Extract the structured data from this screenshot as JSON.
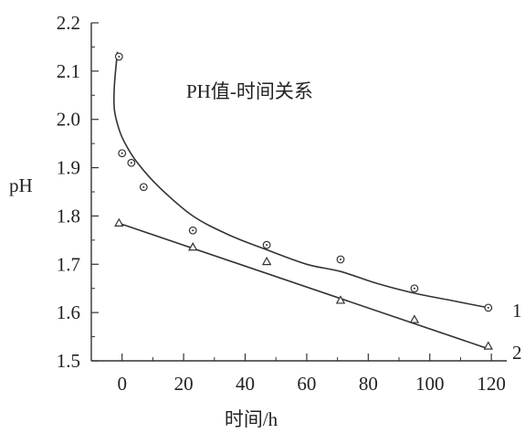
{
  "chart_data": {
    "type": "scatter",
    "title": "",
    "annotation": "PH值-时间关系",
    "xlabel": "时间/h",
    "ylabel": "pH",
    "xlim": [
      -10,
      125
    ],
    "ylim": [
      1.5,
      2.2
    ],
    "x_ticks": [
      "0",
      "20",
      "40",
      "60",
      "80",
      "100",
      "120"
    ],
    "y_ticks": [
      "1.5",
      "1.6",
      "1.7",
      "1.8",
      "1.9",
      "2.0",
      "2.1",
      "2.2"
    ],
    "grid": false,
    "legend": "none",
    "series": [
      {
        "name": "1",
        "marker": "circle-dot",
        "color": "#333333",
        "points": [
          {
            "x": -1,
            "y": 2.13
          },
          {
            "x": 0,
            "y": 1.93
          },
          {
            "x": 3,
            "y": 1.91
          },
          {
            "x": 7,
            "y": 1.86
          },
          {
            "x": 23,
            "y": 1.77
          },
          {
            "x": 47,
            "y": 1.74
          },
          {
            "x": 71,
            "y": 1.71
          },
          {
            "x": 95,
            "y": 1.65
          },
          {
            "x": 119,
            "y": 1.61
          }
        ],
        "fit_curve": [
          {
            "x": -1.5,
            "y": 2.14
          },
          {
            "x": -2.5,
            "y": 2.07
          },
          {
            "x": -2.5,
            "y": 2.02
          },
          {
            "x": -1,
            "y": 1.98
          },
          {
            "x": 1,
            "y": 1.95
          },
          {
            "x": 5,
            "y": 1.91
          },
          {
            "x": 12,
            "y": 1.86
          },
          {
            "x": 23,
            "y": 1.8
          },
          {
            "x": 35,
            "y": 1.76
          },
          {
            "x": 47,
            "y": 1.73
          },
          {
            "x": 60,
            "y": 1.7
          },
          {
            "x": 71,
            "y": 1.685
          },
          {
            "x": 83,
            "y": 1.66
          },
          {
            "x": 95,
            "y": 1.64
          },
          {
            "x": 107,
            "y": 1.625
          },
          {
            "x": 119,
            "y": 1.61
          }
        ]
      },
      {
        "name": "2",
        "marker": "triangle",
        "color": "#333333",
        "points": [
          {
            "x": -1,
            "y": 1.785
          },
          {
            "x": 23,
            "y": 1.735
          },
          {
            "x": 47,
            "y": 1.705
          },
          {
            "x": 71,
            "y": 1.625
          },
          {
            "x": 95,
            "y": 1.585
          },
          {
            "x": 119,
            "y": 1.53
          }
        ],
        "fit_line": [
          {
            "x": -1,
            "y": 1.785
          },
          {
            "x": 119,
            "y": 1.525
          }
        ]
      }
    ]
  }
}
